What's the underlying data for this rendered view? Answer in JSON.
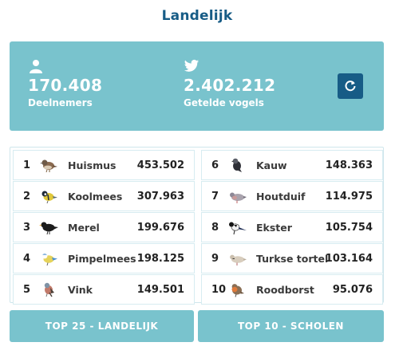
{
  "title": "Landelijk",
  "stats": {
    "participants": {
      "value": "170.408",
      "label": "Deelnemers",
      "icon": "person-icon"
    },
    "birds": {
      "value": "2.402.212",
      "label": "Getelde vogels",
      "icon": "twitter-bird-icon"
    },
    "refresh_icon": "refresh-icon"
  },
  "ranking": {
    "left": [
      {
        "rank": "1",
        "name": "Huismus",
        "count": "453.502",
        "icon": "sparrow-icon"
      },
      {
        "rank": "2",
        "name": "Koolmees",
        "count": "307.963",
        "icon": "great-tit-icon"
      },
      {
        "rank": "3",
        "name": "Merel",
        "count": "199.676",
        "icon": "blackbird-icon"
      },
      {
        "rank": "4",
        "name": "Pimpelmees",
        "count": "198.125",
        "icon": "blue-tit-icon"
      },
      {
        "rank": "5",
        "name": "Vink",
        "count": "149.501",
        "icon": "chaffinch-icon"
      }
    ],
    "right": [
      {
        "rank": "6",
        "name": "Kauw",
        "count": "148.363",
        "icon": "jackdaw-icon"
      },
      {
        "rank": "7",
        "name": "Houtduif",
        "count": "114.975",
        "icon": "wood-pigeon-icon"
      },
      {
        "rank": "8",
        "name": "Ekster",
        "count": "105.754",
        "icon": "magpie-icon"
      },
      {
        "rank": "9",
        "name": "Turkse tortel",
        "count": "103.164",
        "icon": "collared-dove-icon"
      },
      {
        "rank": "10",
        "name": "Roodborst",
        "count": "95.076",
        "icon": "robin-icon"
      }
    ]
  },
  "buttons": {
    "top25": "TOP 25 - LANDELIJK",
    "top10": "TOP 10 - SCHOLEN"
  }
}
